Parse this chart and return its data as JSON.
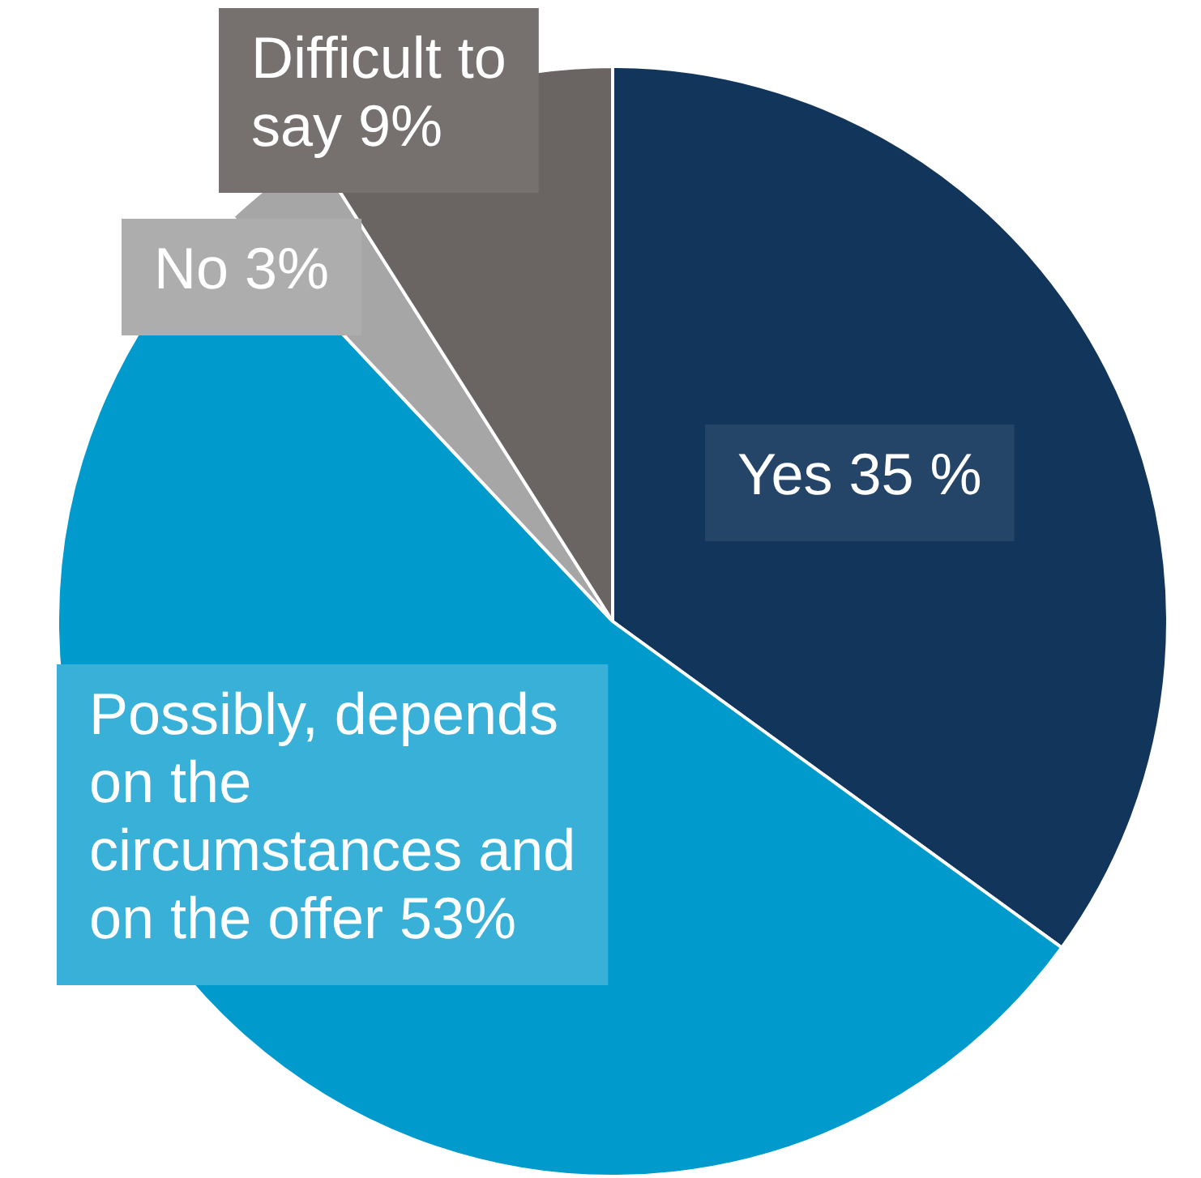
{
  "chart_data": {
    "type": "pie",
    "categories": [
      "Yes",
      "Possibly, depends on the circumstances and on the offer",
      "No",
      "Difficult to say"
    ],
    "values": [
      35,
      53,
      3,
      9
    ],
    "value_labels": [
      "35 %",
      "53%",
      "3%",
      "9%"
    ],
    "colors": [
      "#12355b",
      "#009acd",
      "#a6a6a6",
      "#6a6462"
    ],
    "legend": false
  }
}
